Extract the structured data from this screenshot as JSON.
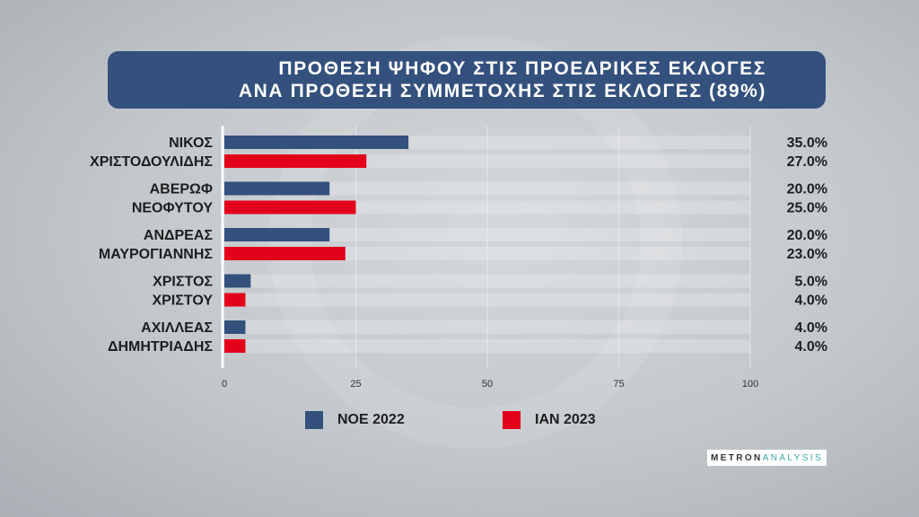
{
  "title": {
    "line1": "ΠΡΟΘΕΣΗ ΨΗΦΟΥ ΣΤΙΣ ΠΡΟΕΔΡΙΚΕΣ ΕΚΛΟΓΕΣ",
    "line2": "ΑΝΑ ΠΡΟΘΕΣΗ ΣΥΜΜΕΤΟΧΗΣ ΣΤΙΣ ΕΚΛΟΓΕΣ (89%)"
  },
  "logo": {
    "part1": "METRON",
    "part2": "ANALYSIS"
  },
  "colors": {
    "series1": "#34517e",
    "series2": "#e3001b",
    "title_bg": "#34517e"
  },
  "chart_data": {
    "type": "bar",
    "orientation": "horizontal",
    "categories": [
      [
        "ΝΙΚΟΣ",
        "ΧΡΙΣΤΟΔΟΥΛΙΔΗΣ"
      ],
      [
        "ΑΒΕΡΩΦ",
        "ΝΕΟΦΥΤΟΥ"
      ],
      [
        "ΑΝΔΡΕΑΣ",
        "ΜΑΥΡΟΓΙΑΝΝΗΣ"
      ],
      [
        "ΧΡΙΣΤΟΣ",
        "ΧΡΙΣΤΟΥ"
      ],
      [
        "ΑΧΙΛΛΕΑΣ",
        "ΔΗΜΗΤΡΙΑΔΗΣ"
      ]
    ],
    "series": [
      {
        "name": "ΝΟΕ 2022",
        "values": [
          35.0,
          20.0,
          20.0,
          5.0,
          4.0
        ],
        "labels": [
          "35.0%",
          "20.0%",
          "20.0%",
          "5.0%",
          "4.0%"
        ]
      },
      {
        "name": "ΙΑΝ 2023",
        "values": [
          27.0,
          25.0,
          23.0,
          4.0,
          4.0
        ],
        "labels": [
          "27.0%",
          "25.0%",
          "23.0%",
          "4.0%",
          "4.0%"
        ]
      }
    ],
    "xlim": [
      0,
      100
    ],
    "xticks": [
      "0",
      "25",
      "50",
      "75",
      "100"
    ],
    "grid": true,
    "legend_position": "bottom"
  }
}
